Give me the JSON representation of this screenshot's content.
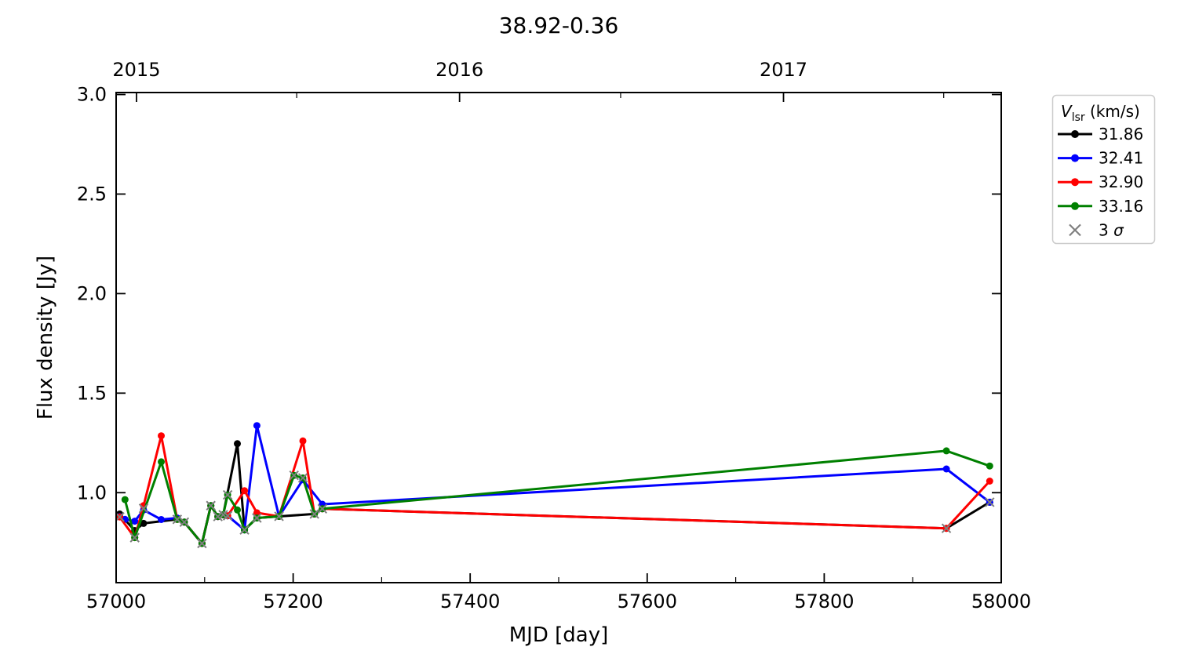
{
  "figure": {
    "title": "38.92-0.36",
    "xlabel": "MJD [day]",
    "ylabel": "Flux density [Jy]"
  },
  "legend": {
    "title": {
      "variable": "V",
      "subscript": "lsr",
      "suffix": " (km/s)"
    },
    "entries": [
      {
        "label": "31.86",
        "color": "#000000",
        "marker": "dot-line"
      },
      {
        "label": "32.41",
        "color": "#0000ff",
        "marker": "dot-line"
      },
      {
        "label": "32.90",
        "color": "#ff0000",
        "marker": "dot-line"
      },
      {
        "label": "33.16",
        "color": "#008000",
        "marker": "dot-line"
      },
      {
        "label": "3 σ",
        "color": "#7f7f7f",
        "marker": "x"
      }
    ]
  },
  "chart_data": {
    "type": "line",
    "title": "38.92-0.36",
    "xlabel": "MJD [day]",
    "ylabel": "Flux density [Jy]",
    "xlim": [
      57000,
      58000
    ],
    "ylim": [
      0.548,
      3.01
    ],
    "x_ticks_major": [
      57000,
      57200,
      57400,
      57600,
      57800,
      58000
    ],
    "x_ticks_minor": [
      57100,
      57300,
      57500,
      57700,
      57900
    ],
    "y_ticks": [
      1.0,
      1.5,
      2.0,
      2.5,
      3.0
    ],
    "y_tick_labels": [
      "1.0",
      "1.5",
      "2.0",
      "2.5",
      "3.0"
    ],
    "top_axis": {
      "years": [
        {
          "label": "2015",
          "mjd": 57023
        },
        {
          "label": "2016",
          "mjd": 57388
        },
        {
          "label": "2017",
          "mjd": 57754
        }
      ],
      "minor_mjd": [
        57204,
        57570,
        57935
      ]
    },
    "grid": false,
    "legend_title": "V_lsr (km/s)",
    "legend_position": "outside-upper-right",
    "x": [
      57004,
      57010,
      57021,
      57031,
      57051,
      57069,
      57077,
      57097,
      57107,
      57115,
      57121,
      57126,
      57137,
      57145,
      57159,
      57184,
      57201,
      57211,
      57224,
      57233,
      57938,
      57987
    ],
    "series": [
      {
        "name": "31.86",
        "color": "#000000",
        "values": [
          0.893,
          null,
          0.81,
          0.846,
          null,
          0.866,
          0.852,
          0.745,
          0.935,
          0.88,
          0.889,
          null,
          1.246,
          0.813,
          0.873,
          0.881,
          null,
          null,
          0.893,
          0.919,
          0.821,
          0.952
        ]
      },
      {
        "name": "32.41",
        "color": "#0000ff",
        "values": [
          0.88,
          0.866,
          0.857,
          0.913,
          0.865,
          0.873,
          0.852,
          0.745,
          0.935,
          0.88,
          0.889,
          0.884,
          null,
          0.813,
          1.337,
          0.881,
          null,
          1.065,
          null,
          0.942,
          1.119,
          0.952
        ]
      },
      {
        "name": "32.90",
        "color": "#ff0000",
        "values": [
          0.878,
          null,
          0.774,
          0.935,
          1.286,
          0.866,
          0.852,
          0.745,
          0.935,
          0.88,
          0.889,
          0.884,
          null,
          1.01,
          0.899,
          0.881,
          null,
          1.26,
          0.893,
          0.919,
          0.821,
          1.058
        ]
      },
      {
        "name": "33.16",
        "color": "#008000",
        "values": [
          null,
          0.965,
          0.774,
          null,
          1.155,
          0.866,
          0.852,
          0.745,
          0.935,
          0.88,
          0.889,
          0.989,
          0.913,
          0.813,
          0.873,
          0.881,
          1.087,
          1.074,
          0.893,
          0.919,
          1.21,
          1.134
        ]
      }
    ],
    "sigma3": {
      "name": "3 σ",
      "color": "#7f7f7f",
      "points": [
        [
          57004,
          0.878
        ],
        [
          57021,
          0.774
        ],
        [
          57031,
          0.921
        ],
        [
          57069,
          0.866
        ],
        [
          57077,
          0.852
        ],
        [
          57097,
          0.745
        ],
        [
          57107,
          0.935
        ],
        [
          57115,
          0.88
        ],
        [
          57121,
          0.889
        ],
        [
          57126,
          0.884
        ],
        [
          57126,
          0.989
        ],
        [
          57145,
          0.813
        ],
        [
          57159,
          0.873
        ],
        [
          57184,
          0.881
        ],
        [
          57201,
          1.087
        ],
        [
          57211,
          1.074
        ],
        [
          57224,
          0.893
        ],
        [
          57233,
          0.919
        ],
        [
          57938,
          0.821
        ],
        [
          57987,
          0.952
        ]
      ]
    }
  }
}
